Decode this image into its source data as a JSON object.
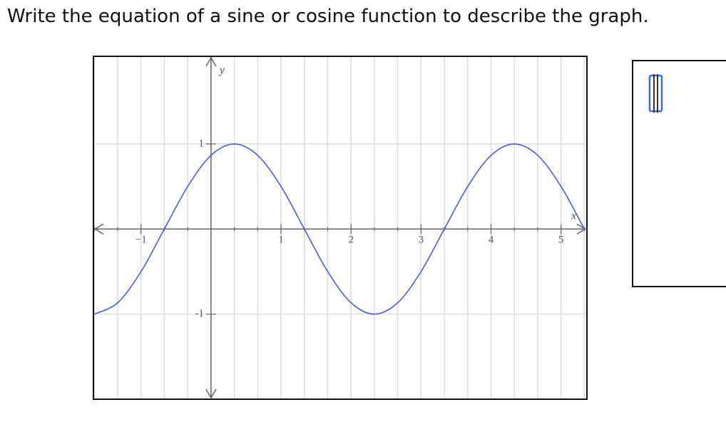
{
  "question": "Write the equation of a sine or cosine function to describe the graph.",
  "chart_data": {
    "type": "line",
    "x_label": "x",
    "y_label": "y",
    "x": [
      -1.667,
      -1.333,
      -1,
      -0.667,
      -0.333,
      0,
      0.333,
      0.667,
      1,
      1.333,
      1.667,
      2,
      2.333,
      2.667,
      3,
      3.333,
      3.667,
      4,
      4.333,
      4.667,
      5,
      5.333
    ],
    "values": [
      -1,
      -0.866,
      -0.5,
      0,
      0.5,
      0.866,
      1,
      0.866,
      0.5,
      0,
      -0.5,
      -0.866,
      -1,
      -0.866,
      -0.5,
      0,
      0.5,
      0.866,
      1,
      0.866,
      0.5,
      0
    ],
    "color": "#4a5be8",
    "xlim": [
      -1.68,
      5.37
    ],
    "ylim": [
      -2,
      2.03
    ],
    "xticks": [
      {
        "value": -1,
        "label": "−1"
      },
      1,
      2,
      3,
      4,
      5
    ],
    "yticks": [
      {
        "value": -1,
        "label": "-1"
      },
      1
    ],
    "xgrid_step": 0.3333,
    "grid": true
  }
}
